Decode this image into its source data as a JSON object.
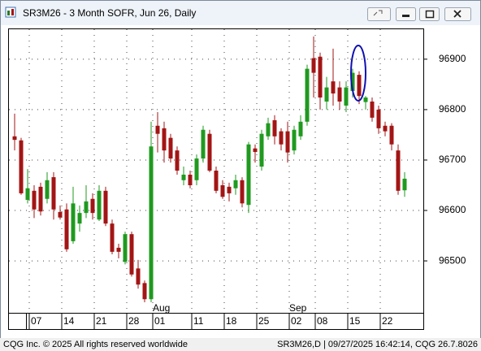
{
  "window": {
    "title": "SR3M26 - 3 Month SOFR, Jun 26, Daily"
  },
  "footer": {
    "left": "CQG Inc. © 2025 All rights reserved worldwide",
    "right": "SR3M26,D | 09/27/2025 16:42:14, CQG 26.7.8026"
  },
  "chart_data": {
    "type": "candlestick",
    "categories": [
      null,
      null,
      null,
      "07",
      null,
      null,
      null,
      null,
      "14",
      null,
      null,
      null,
      null,
      "21",
      null,
      null,
      null,
      null,
      "28",
      null,
      null,
      null,
      "01",
      null,
      null,
      null,
      null,
      null,
      "11",
      null,
      null,
      null,
      null,
      "18",
      null,
      null,
      null,
      null,
      "25",
      null,
      null,
      null,
      null,
      "02",
      null,
      null,
      null,
      "08",
      null,
      null,
      null,
      null,
      "15",
      null,
      null,
      null,
      null,
      "22",
      null,
      null,
      null
    ],
    "x_month_labels": [
      null,
      null,
      null,
      null,
      null,
      null,
      null,
      null,
      null,
      null,
      null,
      null,
      null,
      null,
      null,
      null,
      null,
      null,
      null,
      null,
      null,
      null,
      "Aug",
      null,
      null,
      null,
      null,
      null,
      null,
      null,
      null,
      null,
      null,
      null,
      null,
      null,
      null,
      null,
      null,
      null,
      null,
      null,
      null,
      "Sep",
      null,
      null,
      null,
      null,
      null,
      null,
      null,
      null,
      null,
      null,
      null,
      null,
      null,
      null,
      null,
      null,
      null
    ],
    "open": [
      96747,
      96739,
      96621,
      96639,
      96647,
      96623,
      96666,
      96597,
      96602,
      96539,
      96574,
      96595,
      96623,
      96582,
      96639,
      96574,
      96526,
      96498,
      96553,
      96485,
      96456,
      96424,
      96768,
      96763,
      96744,
      96719,
      96660,
      96671,
      96660,
      96703,
      96752,
      96679,
      96650,
      96647,
      96644,
      96660,
      96611,
      96723,
      96687,
      96747,
      96779,
      96757,
      96757,
      96719,
      96747,
      96776,
      96902,
      96905,
      96816,
      96856,
      96844,
      96808,
      96837,
      96869,
      96815,
      96816,
      96800,
      96768,
      96768,
      96719,
      96640
    ],
    "high": [
      96792,
      96744,
      96682,
      96650,
      96655,
      96676,
      96676,
      96610,
      96614,
      96647,
      96610,
      96650,
      96634,
      96650,
      96647,
      96582,
      96534,
      96558,
      96558,
      96502,
      96461,
      96776,
      96795,
      96776,
      96752,
      96727,
      96687,
      96679,
      96711,
      96768,
      96760,
      96687,
      96660,
      96655,
      96671,
      96666,
      96736,
      96731,
      96760,
      96784,
      96789,
      96763,
      96776,
      96768,
      96789,
      96889,
      96945,
      96913,
      96865,
      96921,
      96856,
      96856,
      96881,
      96876,
      96827,
      96824,
      96808,
      96776,
      96773,
      96731,
      96676
    ],
    "low": [
      96719,
      96631,
      96614,
      96585,
      96590,
      96614,
      96582,
      96582,
      96518,
      96534,
      96558,
      96585,
      96582,
      96579,
      96569,
      96513,
      96505,
      96493,
      96469,
      96445,
      96418,
      96418,
      96715,
      96695,
      96695,
      96671,
      96650,
      96644,
      96650,
      96695,
      96676,
      96634,
      96623,
      96618,
      96631,
      96606,
      96595,
      96695,
      96679,
      96740,
      96731,
      96719,
      96695,
      96711,
      96740,
      96768,
      96824,
      96800,
      96800,
      96808,
      96800,
      96795,
      96824,
      96811,
      96800,
      96776,
      96752,
      96747,
      96719,
      96631,
      96627
    ],
    "close": [
      96740,
      96634,
      96644,
      96602,
      96598,
      96660,
      96602,
      96586,
      96523,
      96614,
      96595,
      96618,
      96595,
      96639,
      96574,
      96518,
      96518,
      96553,
      96473,
      96453,
      96424,
      96727,
      96752,
      96719,
      96703,
      96679,
      96671,
      96650,
      96703,
      96760,
      96679,
      96639,
      96627,
      96634,
      96660,
      96614,
      96731,
      96716,
      96752,
      96773,
      96747,
      96731,
      96715,
      96760,
      96776,
      96881,
      96873,
      96824,
      96844,
      96832,
      96816,
      96844,
      96873,
      96827,
      96824,
      96784,
      96763,
      96757,
      96731,
      96639,
      96663
    ],
    "up_color": "#1f9a1f",
    "down_color": "#a31515",
    "ylim": [
      96397,
      96961
    ],
    "yticks": [
      96500,
      96600,
      96700,
      96800,
      96900
    ],
    "grid": true
  }
}
